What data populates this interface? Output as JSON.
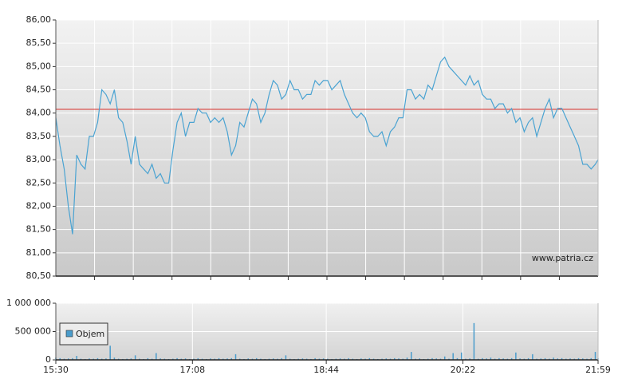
{
  "chart_data": [
    {
      "type": "line",
      "x": [
        930,
        933,
        936,
        939,
        942,
        945,
        948,
        951,
        954,
        957,
        960,
        963,
        966,
        969,
        972,
        975,
        978,
        981,
        984,
        987,
        990,
        993,
        996,
        999,
        1002,
        1005,
        1008,
        1011,
        1014,
        1017,
        1020,
        1023,
        1026,
        1029,
        1032,
        1035,
        1038,
        1041,
        1044,
        1047,
        1050,
        1053,
        1056,
        1059,
        1062,
        1065,
        1068,
        1071,
        1074,
        1077,
        1080,
        1083,
        1086,
        1089,
        1092,
        1095,
        1098,
        1101,
        1104,
        1107,
        1110,
        1113,
        1116,
        1119,
        1122,
        1125,
        1128,
        1131,
        1134,
        1137,
        1140,
        1143,
        1146,
        1149,
        1152,
        1155,
        1158,
        1161,
        1164,
        1167,
        1170,
        1173,
        1176,
        1179,
        1182,
        1185,
        1188,
        1191,
        1194,
        1197,
        1200,
        1203,
        1206,
        1209,
        1212,
        1215,
        1218,
        1221,
        1224,
        1227,
        1230,
        1233,
        1236,
        1239,
        1242,
        1245,
        1248,
        1251,
        1254,
        1257,
        1260,
        1263,
        1266,
        1269,
        1272,
        1275,
        1278,
        1281,
        1284,
        1287,
        1290,
        1293,
        1296,
        1299,
        1302,
        1305,
        1308,
        1311,
        1314,
        1317,
        1319
      ],
      "series": [
        {
          "color": "#4aa3d2",
          "values": [
            83.9,
            83.3,
            82.8,
            82.0,
            81.4,
            83.1,
            82.9,
            82.8,
            83.5,
            83.5,
            83.8,
            84.5,
            84.4,
            84.2,
            84.5,
            83.9,
            83.8,
            83.4,
            82.9,
            83.5,
            82.9,
            82.8,
            82.7,
            82.9,
            82.6,
            82.7,
            82.5,
            82.5,
            83.2,
            83.8,
            84.0,
            83.5,
            83.8,
            83.8,
            84.1,
            84.0,
            84.0,
            83.8,
            83.9,
            83.8,
            83.9,
            83.6,
            83.1,
            83.3,
            83.8,
            83.7,
            84.0,
            84.3,
            84.2,
            83.8,
            84.0,
            84.4,
            84.7,
            84.6,
            84.3,
            84.4,
            84.7,
            84.5,
            84.5,
            84.3,
            84.4,
            84.4,
            84.7,
            84.6,
            84.7,
            84.7,
            84.5,
            84.6,
            84.7,
            84.4,
            84.2,
            84.0,
            83.9,
            84.0,
            83.9,
            83.6,
            83.5,
            83.5,
            83.6,
            83.3,
            83.6,
            83.7,
            83.9,
            83.9,
            84.5,
            84.5,
            84.3,
            84.4,
            84.3,
            84.6,
            84.5,
            84.8,
            85.1,
            85.2,
            85.0,
            84.9,
            84.8,
            84.7,
            84.6,
            84.8,
            84.6,
            84.7,
            84.4,
            84.3,
            84.3,
            84.1,
            84.2,
            84.2,
            84.0,
            84.1,
            83.8,
            83.9,
            83.6,
            83.8,
            83.9,
            83.5,
            83.8,
            84.1,
            84.3,
            83.9,
            84.1,
            84.1,
            83.9,
            83.7,
            83.5,
            83.3,
            82.9,
            82.9,
            82.8,
            82.9,
            83.0
          ]
        }
      ],
      "xlim": [
        930,
        1319
      ],
      "ylim": [
        80.5,
        86
      ],
      "yticks": [
        {
          "value": 80.5,
          "label": "80,50"
        },
        {
          "value": 81,
          "label": "81,00"
        },
        {
          "value": 81.5,
          "label": "81,50"
        },
        {
          "value": 82,
          "label": "82,00"
        },
        {
          "value": 82.5,
          "label": "82,50"
        },
        {
          "value": 83,
          "label": "83,00"
        },
        {
          "value": 83.5,
          "label": "83,50"
        },
        {
          "value": 84,
          "label": "84,00"
        },
        {
          "value": 84.5,
          "label": "84,50"
        },
        {
          "value": 85,
          "label": "85,00"
        },
        {
          "value": 85.5,
          "label": "85,50"
        },
        {
          "value": 86,
          "label": "86,00"
        }
      ],
      "reference_line": {
        "value": 84.08,
        "color": "#d9302a"
      },
      "grid": true,
      "watermark": "www.patria.cz"
    },
    {
      "type": "bar",
      "x": [
        930,
        933,
        936,
        939,
        942,
        945,
        948,
        951,
        954,
        957,
        960,
        963,
        966,
        969,
        972,
        975,
        978,
        981,
        984,
        987,
        990,
        993,
        996,
        999,
        1002,
        1005,
        1008,
        1011,
        1014,
        1017,
        1020,
        1023,
        1026,
        1029,
        1032,
        1035,
        1038,
        1041,
        1044,
        1047,
        1050,
        1053,
        1056,
        1059,
        1062,
        1065,
        1068,
        1071,
        1074,
        1077,
        1080,
        1083,
        1086,
        1089,
        1092,
        1095,
        1098,
        1101,
        1104,
        1107,
        1110,
        1113,
        1116,
        1119,
        1122,
        1125,
        1128,
        1131,
        1134,
        1137,
        1140,
        1143,
        1146,
        1149,
        1152,
        1155,
        1158,
        1161,
        1164,
        1167,
        1170,
        1173,
        1176,
        1179,
        1182,
        1185,
        1188,
        1191,
        1194,
        1197,
        1200,
        1203,
        1206,
        1209,
        1212,
        1215,
        1218,
        1221,
        1224,
        1227,
        1230,
        1233,
        1236,
        1239,
        1242,
        1245,
        1248,
        1251,
        1254,
        1257,
        1260,
        1263,
        1266,
        1269,
        1272,
        1275,
        1278,
        1281,
        1284,
        1287,
        1290,
        1293,
        1296,
        1299,
        1302,
        1305,
        1308,
        1311,
        1314,
        1317,
        1319
      ],
      "series": [
        {
          "name": "Objem",
          "color": "#4a9ccc",
          "values": [
            40000,
            30000,
            20000,
            25000,
            30000,
            70000,
            20000,
            15000,
            25000,
            20000,
            30000,
            20000,
            25000,
            250000,
            40000,
            20000,
            15000,
            20000,
            25000,
            80000,
            20000,
            15000,
            30000,
            20000,
            120000,
            25000,
            20000,
            15000,
            20000,
            30000,
            20000,
            25000,
            15000,
            20000,
            30000,
            20000,
            15000,
            25000,
            20000,
            30000,
            20000,
            25000,
            30000,
            100000,
            20000,
            15000,
            25000,
            20000,
            30000,
            20000,
            15000,
            20000,
            25000,
            20000,
            30000,
            80000,
            20000,
            15000,
            20000,
            25000,
            20000,
            15000,
            30000,
            20000,
            25000,
            20000,
            15000,
            20000,
            25000,
            20000,
            30000,
            20000,
            15000,
            25000,
            20000,
            30000,
            20000,
            15000,
            20000,
            25000,
            20000,
            30000,
            25000,
            20000,
            40000,
            140000,
            20000,
            25000,
            15000,
            20000,
            30000,
            25000,
            20000,
            60000,
            20000,
            120000,
            30000,
            130000,
            20000,
            25000,
            650000,
            20000,
            30000,
            25000,
            40000,
            20000,
            30000,
            25000,
            20000,
            30000,
            130000,
            25000,
            20000,
            30000,
            100000,
            20000,
            25000,
            30000,
            20000,
            40000,
            25000,
            30000,
            20000,
            25000,
            20000,
            30000,
            25000,
            20000,
            30000,
            140000,
            30000
          ]
        }
      ],
      "xlim": [
        930,
        1319
      ],
      "xticks": [
        {
          "value": 930,
          "label": "15:30"
        },
        {
          "value": 1028,
          "label": "17:08"
        },
        {
          "value": 1124,
          "label": "18:44"
        },
        {
          "value": 1222,
          "label": "20:22"
        },
        {
          "value": 1319,
          "label": "21:59"
        }
      ],
      "ylim": [
        0,
        1000000
      ],
      "yticks": [
        0,
        {
          "value": 500000,
          "label": "500 000"
        },
        {
          "value": 1000000,
          "label": "1 000 000"
        }
      ],
      "grid": true,
      "legend": "left"
    }
  ]
}
